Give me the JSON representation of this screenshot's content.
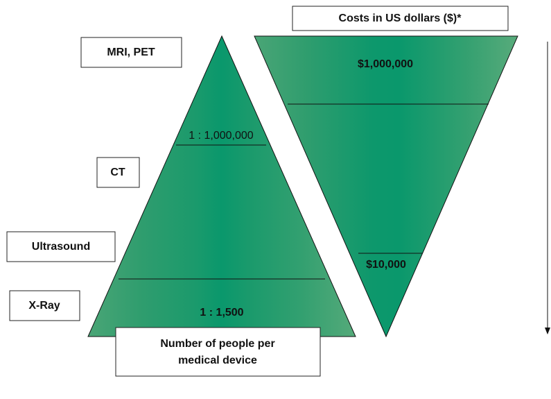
{
  "cost_box": {
    "label": "Costs in US dollars ($)*"
  },
  "devices": [
    "MRI, PET",
    "CT",
    "Ultrasound",
    "X-Ray"
  ],
  "people_pyramid": {
    "top_ratio": "1 : 1,000,000",
    "bottom_ratio": "1 : 1,500"
  },
  "cost_pyramid": {
    "top_cost": "$1,000,000",
    "bottom_cost": "$10,000"
  },
  "footer_box": {
    "lines": [
      "Number of people per",
      "medical device"
    ]
  }
}
